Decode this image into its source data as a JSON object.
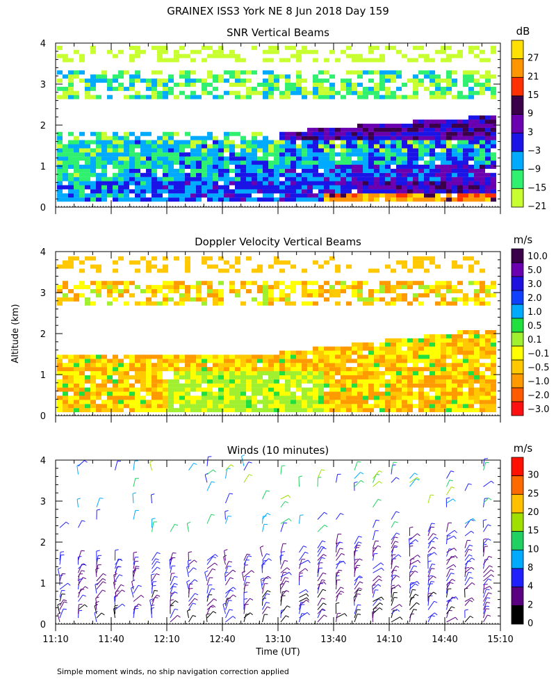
{
  "figure": {
    "title": "GRAINEX ISS3 York NE   8 Jun 2018 Day 159",
    "ylabel": "Altitude (km)",
    "xlabel": "Time (UT)",
    "footnote": "Simple moment winds, no ship navigation correction applied"
  },
  "chart_data": [
    {
      "type": "heatmap",
      "title": "SNR Vertical Beams",
      "x_ticks": [
        "11:10",
        "11:40",
        "12:10",
        "12:40",
        "13:10",
        "13:40",
        "14:10",
        "14:40",
        "15:10"
      ],
      "xlim": [
        "11:10",
        "15:10"
      ],
      "ylim": [
        0,
        4
      ],
      "y_ticks": [
        0,
        1,
        2,
        3,
        4
      ],
      "colorbar": {
        "unit": "dB",
        "labels": [
          "27",
          "21",
          "15",
          "9",
          "3",
          "−3",
          "−9",
          "−15",
          "−21"
        ],
        "colors": [
          "#ffe000",
          "#ff9500",
          "#ff3000",
          "#3a004a",
          "#6a00b0",
          "#1a14e6",
          "#00aaff",
          "#30f070",
          "#c8ff30"
        ]
      },
      "layers": [
        {
          "y_from": 0.15,
          "y_to": 0.5,
          "level": "-9",
          "note": "blue/cyan lower layer"
        },
        {
          "y_from": 1.6,
          "y_to": 2.1,
          "level": "9",
          "note": "strong layer after 13:30"
        },
        {
          "y_from": 2.7,
          "y_to": 3.6,
          "level": "-21",
          "note": "weak upper layer"
        }
      ]
    },
    {
      "type": "heatmap",
      "title": "Doppler Velocity Vertical Beams",
      "x_ticks": [
        "11:10",
        "11:40",
        "12:10",
        "12:40",
        "13:10",
        "13:40",
        "14:10",
        "14:40",
        "15:10"
      ],
      "xlim": [
        "11:10",
        "15:10"
      ],
      "ylim": [
        0,
        4
      ],
      "y_ticks": [
        0,
        1,
        2,
        3,
        4
      ],
      "colorbar": {
        "unit": "m/s",
        "labels": [
          "10.0",
          "5.0",
          "3.0",
          "2.0",
          "1.0",
          "0.5",
          "0.1",
          "−0.1",
          "−0.5",
          "−1.0",
          "−2.0",
          "−3.0"
        ],
        "colors": [
          "#3a004a",
          "#6a00b0",
          "#2010e0",
          "#1040ff",
          "#00aaff",
          "#20e040",
          "#a0f030",
          "#ffff00",
          "#ffc800",
          "#ff9a00",
          "#ff5a00",
          "#ff1010"
        ]
      }
    },
    {
      "type": "barbs",
      "title": "Winds (10 minutes)",
      "x_ticks": [
        "11:10",
        "11:40",
        "12:10",
        "12:40",
        "13:10",
        "13:40",
        "14:10",
        "14:40",
        "15:10"
      ],
      "xlim": [
        "11:10",
        "15:10"
      ],
      "ylim": [
        0,
        4
      ],
      "y_ticks": [
        0,
        1,
        2,
        3,
        4
      ],
      "colorbar": {
        "unit": "m/s",
        "labels": [
          "30",
          "25",
          "20",
          "15",
          "10",
          "8",
          "4",
          "2",
          "0"
        ],
        "colors": [
          "#ff1000",
          "#ff6a00",
          "#ffc000",
          "#a0e000",
          "#20d060",
          "#00aaff",
          "#2020ff",
          "#5a0080",
          "#000000"
        ]
      }
    }
  ]
}
